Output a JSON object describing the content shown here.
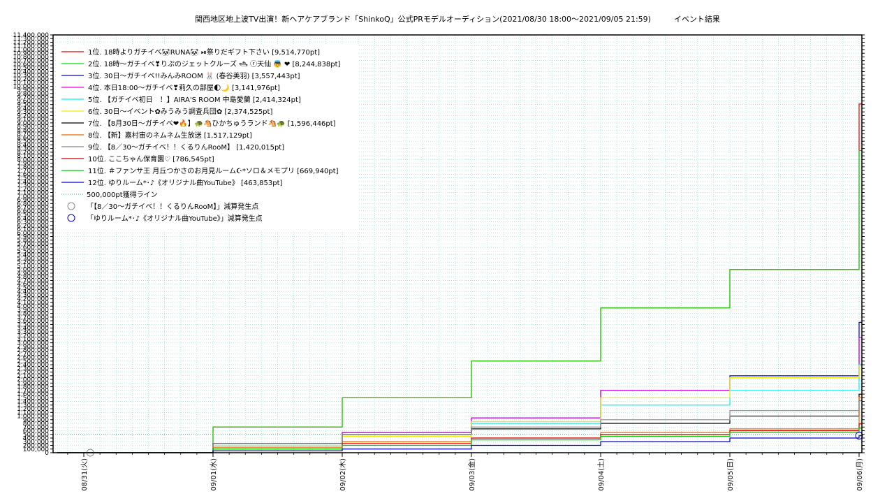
{
  "chart_data": {
    "type": "line",
    "title": "関西地区地上波TV出演！新ヘアケアブランド「ShinkoQ」公式PRモデルオーディション(2021/08/30 18:00〜2021/09/05 21:59)　　　イベント結果",
    "xlabel": "",
    "ylabel": "",
    "ylim": [
      0,
      11400000
    ],
    "y_tick_step": 100000,
    "xlim": [
      "2021-08-30 18:00",
      "2021-09-06 00:00"
    ],
    "x_ticks": [
      "08/31(火)",
      "09/01(水)",
      "09/02(木)",
      "09/03(金)",
      "09/04(土)",
      "09/05(日)",
      "09/06(月)"
    ],
    "grid": true,
    "legend_position": "top-left",
    "series": [
      {
        "name": "1位. 18時よりガチイベ🐼RUNA🐼 ⏯祭りだギフト下さい [9,514,770pt]",
        "color": "#e60000",
        "x": [
          0,
          1,
          2,
          3,
          4,
          5,
          6
        ],
        "y": [
          0,
          700000,
          1500000,
          2500000,
          3950000,
          5000000,
          9514770
        ]
      },
      {
        "name": "2位. 18時〜ガチイベ❣りぷのジェットクルーズ 🛥 ⓡ天仙 👼 ❤ [8,244,838pt]",
        "color": "#00dd00",
        "x": [
          0,
          1,
          2,
          3,
          4,
          5,
          6
        ],
        "y": [
          0,
          700000,
          1500000,
          2500000,
          3950000,
          5000000,
          8244838
        ]
      },
      {
        "name": "3位. 30日〜ガチイベ!!みんみROOM 🐰 (春谷美羽) [3,557,443pt]",
        "color": "#0000dd",
        "x": [
          0,
          1,
          2,
          3,
          4,
          5,
          6
        ],
        "y": [
          0,
          250000,
          550000,
          950000,
          1700000,
          2100000,
          3557443
        ]
      },
      {
        "name": "4位. 本日18:00〜ガチイベ❣莉久の部屋🌓🌙 [3,141,976pt]",
        "color": "#dd00dd",
        "x": [
          0,
          1,
          2,
          3,
          4,
          5,
          6
        ],
        "y": [
          0,
          250000,
          550000,
          950000,
          1700000,
          2050000,
          3141976
        ]
      },
      {
        "name": "5位. 【ガチイベ初日　！】AIRA'S ROOM 中島愛蘭 [2,414,324pt]",
        "color": "#00eeee",
        "x": [
          0,
          1,
          2,
          3,
          4,
          5,
          6
        ],
        "y": [
          0,
          200000,
          450000,
          800000,
          1300000,
          1700000,
          2414324
        ]
      },
      {
        "name": "6位. 30日〜イベント✿みうみう調査兵団✿ [2,374,525pt]",
        "color": "#eeee00",
        "x": [
          0,
          1,
          2,
          3,
          4,
          5,
          6
        ],
        "y": [
          0,
          200000,
          450000,
          850000,
          1500000,
          2050000,
          2374525
        ]
      },
      {
        "name": "7位. 【8月30日〜ガチイベ❤🔥】🐢🐴ひかちゅうランド🐴🐢 [1,596,446pt]",
        "color": "#000000",
        "x": [
          0,
          1,
          2,
          3,
          4,
          5,
          6
        ],
        "y": [
          0,
          250000,
          500000,
          650000,
          800000,
          1000000,
          1596446
        ]
      },
      {
        "name": "8位. 【新】嘉村宙のネムネム生放送 [1,517,129pt]",
        "color": "#ee6600",
        "x": [
          0,
          1,
          2,
          3,
          4,
          5,
          6
        ],
        "y": [
          0,
          150000,
          300000,
          400000,
          550000,
          650000,
          1517129
        ]
      },
      {
        "name": "9位. 【8／30〜ガチイベ！！くるりんRooM】 [1,420,015pt]",
        "color": "#888888",
        "x": [
          0,
          1,
          2,
          3,
          4,
          5,
          6
        ],
        "y": [
          0,
          250000,
          500000,
          700000,
          900000,
          1150000,
          1420015
        ]
      },
      {
        "name": "10位. ここちゃん保育園♡ [786,545pt]",
        "color": "#cc0000",
        "x": [
          0,
          1,
          2,
          3,
          4,
          5,
          6
        ],
        "y": [
          0,
          100000,
          250000,
          400000,
          500000,
          600000,
          786545
        ]
      },
      {
        "name": "11位. ＃ファンサ王 月丘つかさのお月見ルーム☪*ソロ＆メモプリ [669,940pt]",
        "color": "#00cc00",
        "x": [
          0,
          1,
          2,
          3,
          4,
          5,
          6
        ],
        "y": [
          0,
          100000,
          200000,
          350000,
          450000,
          550000,
          669940
        ]
      },
      {
        "name": "12位. ゆりルーム*･♪《オリジナル曲YouTube》 [463,853pt]",
        "color": "#0000cc",
        "x": [
          0,
          1,
          2,
          3,
          4,
          5,
          6
        ],
        "y": [
          0,
          50000,
          100000,
          200000,
          300000,
          400000,
          463853
        ]
      }
    ],
    "reference_line": {
      "name": "500,000pt獲得ライン",
      "y": 500000,
      "color": "#00cc88"
    },
    "markers": [
      {
        "name": "「【8／30〜ガチイベ！！くるりんRooM】」減算発生点",
        "color": "#888888",
        "x": 0.05,
        "y": 0
      },
      {
        "name": "「ゆりルーム*･♪《オリジナル曲YouTube》」減算発生点",
        "color": "#0000cc",
        "x": 6.0,
        "y": 463853
      }
    ]
  }
}
